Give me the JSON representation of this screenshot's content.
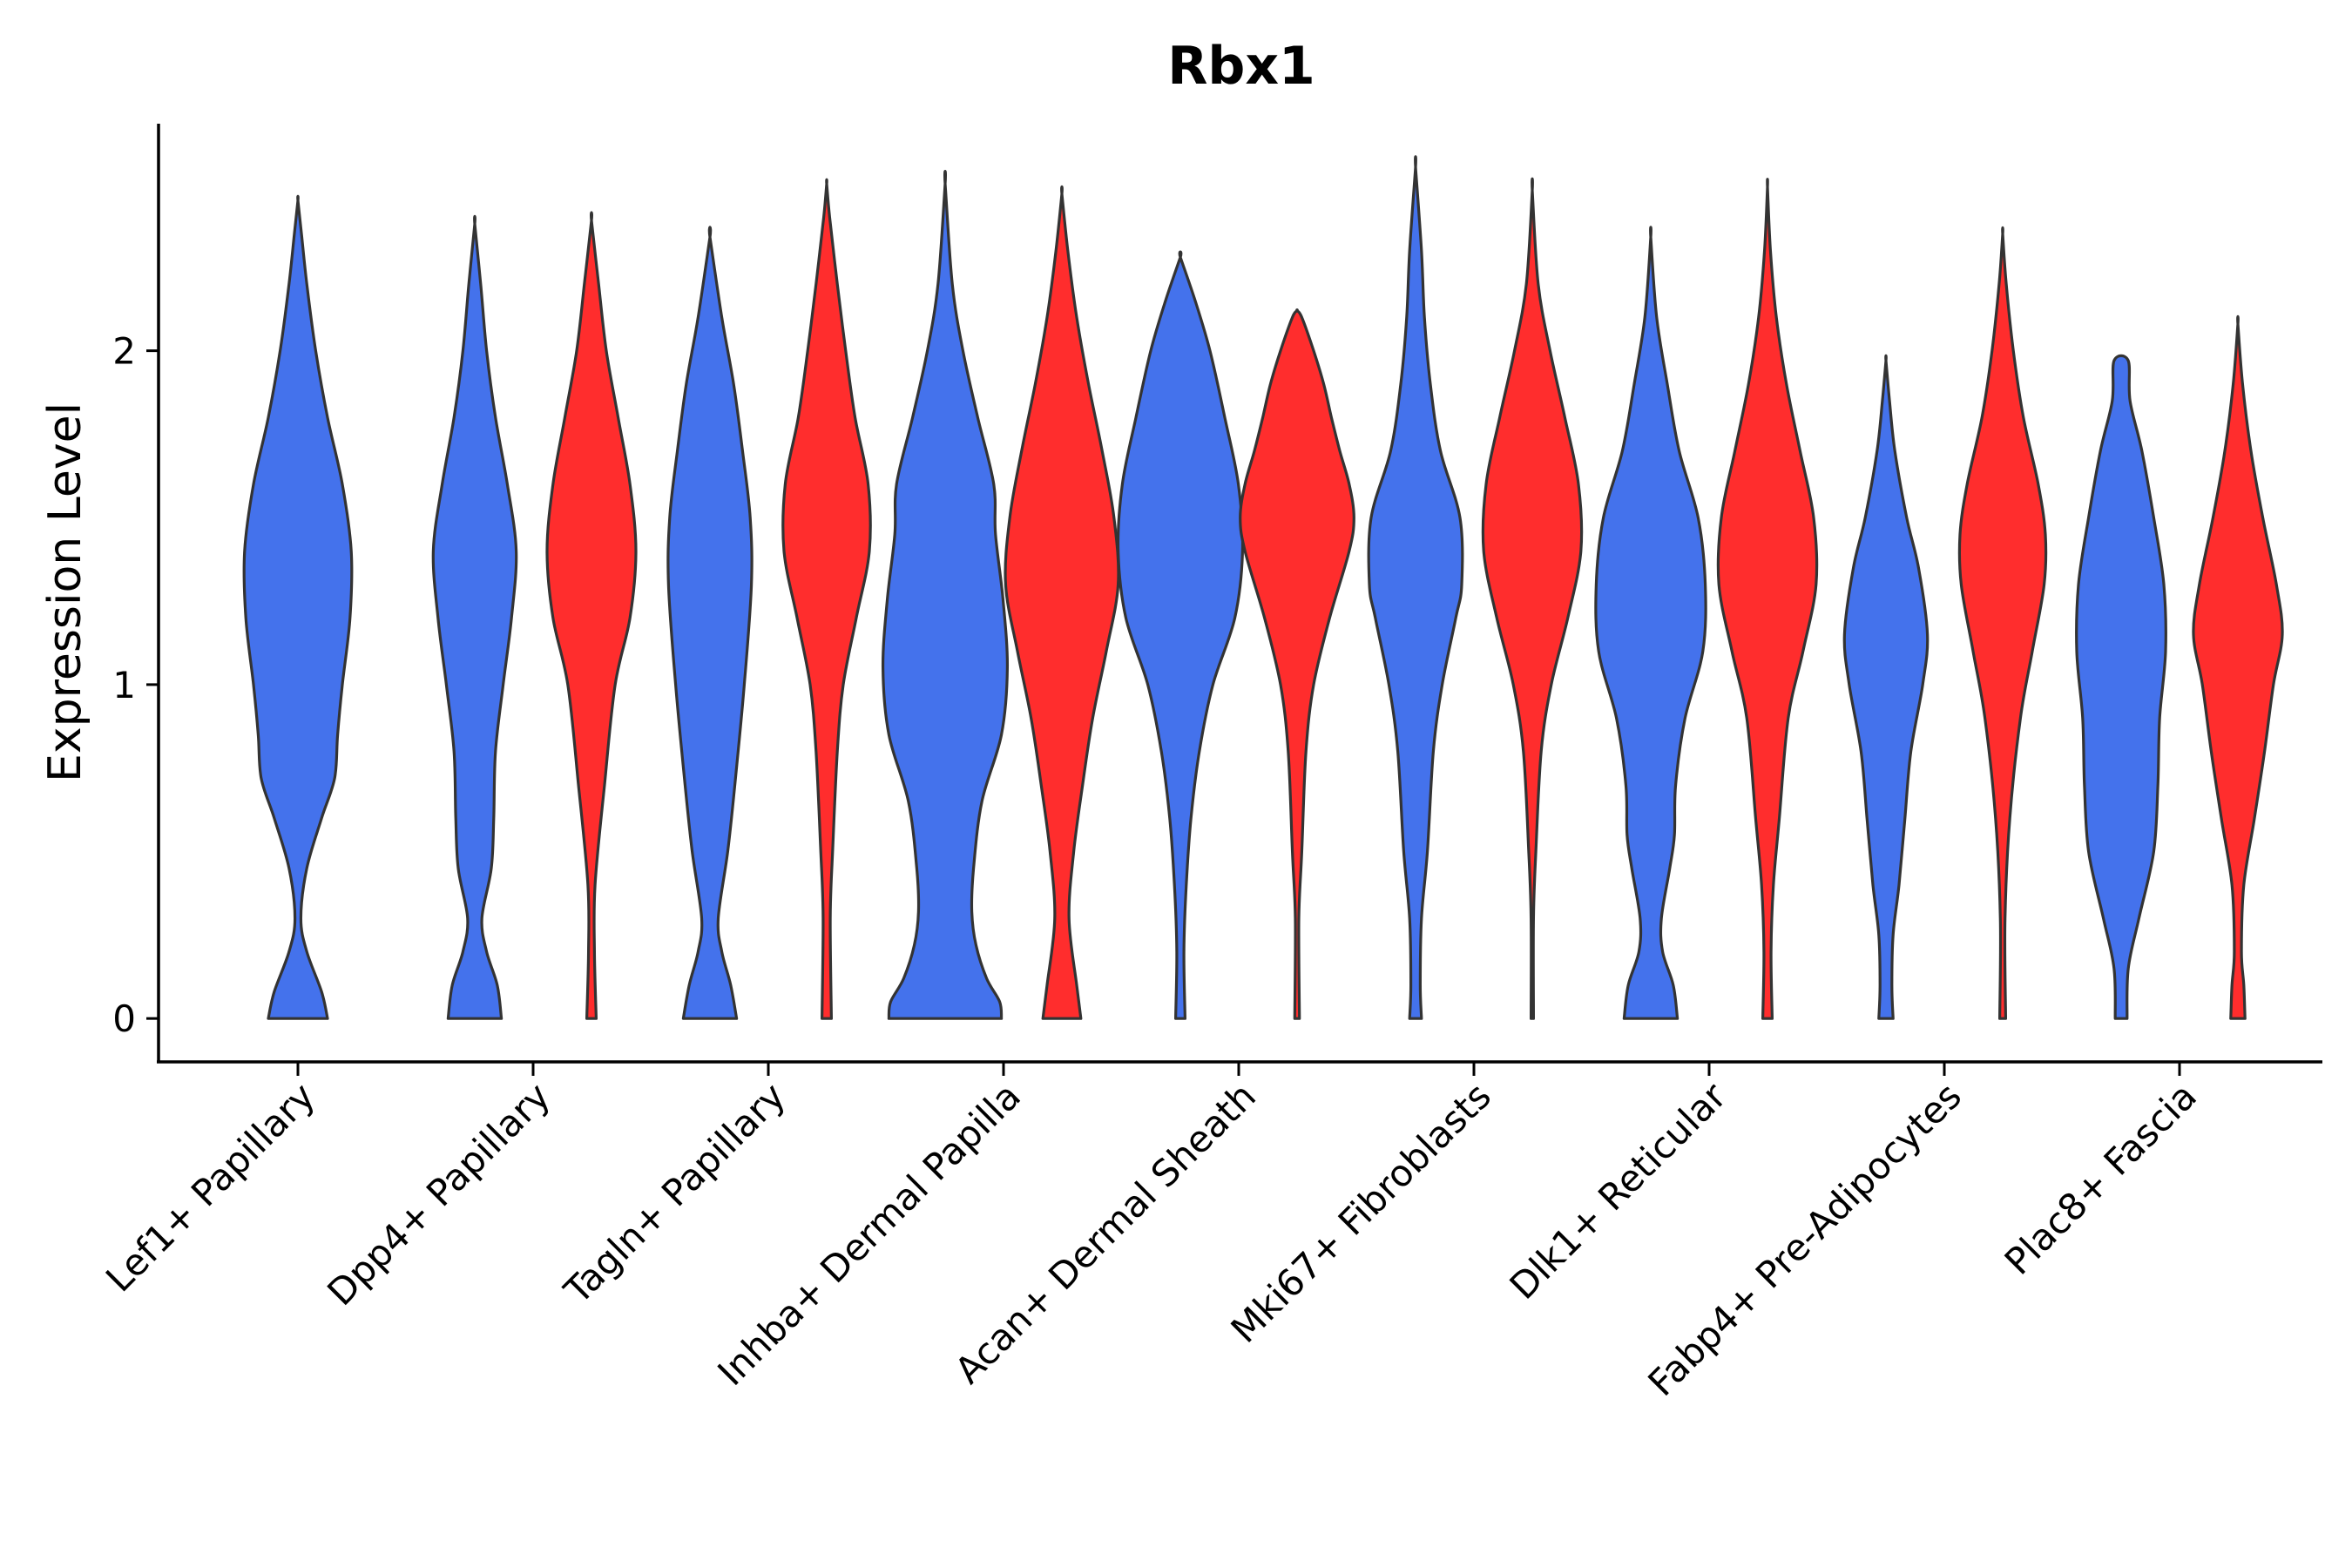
{
  "chart_data": {
    "type": "violin",
    "title": "Rbx1",
    "ylabel": "Expression Level",
    "xlabel": "",
    "ylim": [
      -0.13,
      2.68
    ],
    "yticks": [
      0,
      1,
      2
    ],
    "grid": false,
    "colors": {
      "group_a": "#4472EC",
      "group_b": "#FF2D2D",
      "outline": "#333333"
    },
    "categories": [
      "Lef1+ Papillary",
      "Dpp4+ Papillary",
      "Tagln+ Papillary",
      "Inhba+ Dermal Papilla",
      "Acan+ Dermal Sheath",
      "Mki67+ Fibroblasts",
      "Dlk1+ Reticular",
      "Fabp4+ Pre-Adipocytes",
      "Plac8+ Fascia"
    ],
    "violins": [
      {
        "category": 0,
        "group": "a",
        "ymin": 0,
        "ymax": 2.45,
        "profile": [
          [
            0,
            0.5
          ],
          [
            0.08,
            0.4
          ],
          [
            0.2,
            0.15
          ],
          [
            0.3,
            0.05
          ],
          [
            0.45,
            0.15
          ],
          [
            0.6,
            0.4
          ],
          [
            0.72,
            0.62
          ],
          [
            0.85,
            0.67
          ],
          [
            1.0,
            0.75
          ],
          [
            1.2,
            0.88
          ],
          [
            1.4,
            0.9
          ],
          [
            1.6,
            0.75
          ],
          [
            1.8,
            0.5
          ],
          [
            2.0,
            0.3
          ],
          [
            2.2,
            0.15
          ],
          [
            2.35,
            0.06
          ],
          [
            2.45,
            0
          ]
        ]
      },
      {
        "category": 1,
        "group": "a",
        "ymin": 0,
        "ymax": 2.38,
        "profile": [
          [
            0,
            0.45
          ],
          [
            0.1,
            0.38
          ],
          [
            0.2,
            0.2
          ],
          [
            0.3,
            0.12
          ],
          [
            0.45,
            0.28
          ],
          [
            0.6,
            0.32
          ],
          [
            0.8,
            0.35
          ],
          [
            1.0,
            0.48
          ],
          [
            1.2,
            0.62
          ],
          [
            1.4,
            0.7
          ],
          [
            1.6,
            0.55
          ],
          [
            1.8,
            0.35
          ],
          [
            2.0,
            0.2
          ],
          [
            2.2,
            0.1
          ],
          [
            2.38,
            0
          ]
        ]
      },
      {
        "category": 1,
        "group": "b",
        "ymin": 0,
        "ymax": 2.39,
        "profile": [
          [
            0,
            0.08
          ],
          [
            0.2,
            0.05
          ],
          [
            0.4,
            0.06
          ],
          [
            0.7,
            0.22
          ],
          [
            1.0,
            0.4
          ],
          [
            1.2,
            0.65
          ],
          [
            1.4,
            0.75
          ],
          [
            1.6,
            0.65
          ],
          [
            1.8,
            0.45
          ],
          [
            2.0,
            0.25
          ],
          [
            2.2,
            0.12
          ],
          [
            2.39,
            0
          ]
        ]
      },
      {
        "category": 2,
        "group": "a",
        "ymin": 0,
        "ymax": 2.34,
        "profile": [
          [
            0,
            0.45
          ],
          [
            0.1,
            0.35
          ],
          [
            0.2,
            0.2
          ],
          [
            0.3,
            0.14
          ],
          [
            0.5,
            0.3
          ],
          [
            0.7,
            0.42
          ],
          [
            1.0,
            0.58
          ],
          [
            1.3,
            0.7
          ],
          [
            1.5,
            0.68
          ],
          [
            1.7,
            0.55
          ],
          [
            1.9,
            0.4
          ],
          [
            2.1,
            0.2
          ],
          [
            2.34,
            0
          ]
        ]
      },
      {
        "category": 2,
        "group": "b",
        "ymin": 0,
        "ymax": 2.5,
        "profile": [
          [
            0,
            0.08
          ],
          [
            0.3,
            0.06
          ],
          [
            0.5,
            0.1
          ],
          [
            0.8,
            0.18
          ],
          [
            1.0,
            0.28
          ],
          [
            1.2,
            0.5
          ],
          [
            1.4,
            0.72
          ],
          [
            1.6,
            0.7
          ],
          [
            1.8,
            0.48
          ],
          [
            2.0,
            0.32
          ],
          [
            2.2,
            0.18
          ],
          [
            2.4,
            0.05
          ],
          [
            2.5,
            0
          ]
        ]
      },
      {
        "category": 3,
        "group": "a",
        "ymin": 0,
        "ymax": 2.5,
        "profile": [
          [
            0,
            0.95
          ],
          [
            0.05,
            0.92
          ],
          [
            0.12,
            0.7
          ],
          [
            0.22,
            0.52
          ],
          [
            0.32,
            0.45
          ],
          [
            0.45,
            0.48
          ],
          [
            0.65,
            0.62
          ],
          [
            0.85,
            0.95
          ],
          [
            1.05,
            1.05
          ],
          [
            1.25,
            0.98
          ],
          [
            1.45,
            0.85
          ],
          [
            1.6,
            0.82
          ],
          [
            1.8,
            0.55
          ],
          [
            2.0,
            0.3
          ],
          [
            2.2,
            0.12
          ],
          [
            2.5,
            0
          ]
        ]
      },
      {
        "category": 3,
        "group": "b",
        "ymin": 0,
        "ymax": 2.47,
        "profile": [
          [
            0,
            0.32
          ],
          [
            0.1,
            0.25
          ],
          [
            0.3,
            0.12
          ],
          [
            0.5,
            0.2
          ],
          [
            0.7,
            0.35
          ],
          [
            0.9,
            0.52
          ],
          [
            1.1,
            0.75
          ],
          [
            1.3,
            0.95
          ],
          [
            1.5,
            0.88
          ],
          [
            1.7,
            0.68
          ],
          [
            1.9,
            0.45
          ],
          [
            2.1,
            0.25
          ],
          [
            2.3,
            0.1
          ],
          [
            2.47,
            0
          ]
        ]
      },
      {
        "category": 4,
        "group": "a",
        "ymin": 0,
        "ymax": 2.28,
        "profile": [
          [
            0,
            0.08
          ],
          [
            0.2,
            0.06
          ],
          [
            0.4,
            0.1
          ],
          [
            0.6,
            0.18
          ],
          [
            0.8,
            0.32
          ],
          [
            1.0,
            0.55
          ],
          [
            1.2,
            0.92
          ],
          [
            1.4,
            1.05
          ],
          [
            1.6,
            0.98
          ],
          [
            1.8,
            0.75
          ],
          [
            2.0,
            0.5
          ],
          [
            2.15,
            0.25
          ],
          [
            2.28,
            0
          ]
        ]
      },
      {
        "category": 4,
        "group": "b",
        "ymin": 0,
        "ymax": 2.12,
        "profile": [
          [
            0,
            0.04
          ],
          [
            0.3,
            0.03
          ],
          [
            0.5,
            0.08
          ],
          [
            0.8,
            0.15
          ],
          [
            1.0,
            0.28
          ],
          [
            1.2,
            0.55
          ],
          [
            1.4,
            0.88
          ],
          [
            1.5,
            0.96
          ],
          [
            1.6,
            0.88
          ],
          [
            1.7,
            0.72
          ],
          [
            1.8,
            0.58
          ],
          [
            1.9,
            0.45
          ],
          [
            2.0,
            0.28
          ],
          [
            2.1,
            0.08
          ],
          [
            2.12,
            0
          ]
        ]
      },
      {
        "category": 5,
        "group": "a",
        "ymin": 0,
        "ymax": 2.55,
        "profile": [
          [
            0,
            0.1
          ],
          [
            0.1,
            0.08
          ],
          [
            0.3,
            0.1
          ],
          [
            0.5,
            0.2
          ],
          [
            0.8,
            0.3
          ],
          [
            1.0,
            0.45
          ],
          [
            1.2,
            0.68
          ],
          [
            1.3,
            0.78
          ],
          [
            1.5,
            0.75
          ],
          [
            1.7,
            0.42
          ],
          [
            1.9,
            0.25
          ],
          [
            2.1,
            0.15
          ],
          [
            2.3,
            0.1
          ],
          [
            2.55,
            0
          ]
        ]
      },
      {
        "category": 5,
        "group": "b",
        "ymin": 0,
        "ymax": 2.48,
        "profile": [
          [
            0,
            0.02
          ],
          [
            0.3,
            0.02
          ],
          [
            0.5,
            0.06
          ],
          [
            0.8,
            0.15
          ],
          [
            1.0,
            0.32
          ],
          [
            1.2,
            0.6
          ],
          [
            1.4,
            0.82
          ],
          [
            1.6,
            0.78
          ],
          [
            1.8,
            0.55
          ],
          [
            2.0,
            0.3
          ],
          [
            2.2,
            0.1
          ],
          [
            2.48,
            0
          ]
        ]
      },
      {
        "category": 6,
        "group": "a",
        "ymin": 0,
        "ymax": 2.34,
        "profile": [
          [
            0,
            0.45
          ],
          [
            0.1,
            0.38
          ],
          [
            0.2,
            0.2
          ],
          [
            0.3,
            0.18
          ],
          [
            0.45,
            0.32
          ],
          [
            0.55,
            0.4
          ],
          [
            0.7,
            0.42
          ],
          [
            0.9,
            0.58
          ],
          [
            1.1,
            0.88
          ],
          [
            1.3,
            0.92
          ],
          [
            1.5,
            0.8
          ],
          [
            1.7,
            0.48
          ],
          [
            1.9,
            0.28
          ],
          [
            2.1,
            0.1
          ],
          [
            2.34,
            0
          ]
        ]
      },
      {
        "category": 6,
        "group": "b",
        "ymin": 0,
        "ymax": 2.49,
        "profile": [
          [
            0,
            0.08
          ],
          [
            0.2,
            0.06
          ],
          [
            0.4,
            0.1
          ],
          [
            0.6,
            0.2
          ],
          [
            0.9,
            0.35
          ],
          [
            1.1,
            0.6
          ],
          [
            1.3,
            0.82
          ],
          [
            1.5,
            0.78
          ],
          [
            1.7,
            0.55
          ],
          [
            1.9,
            0.32
          ],
          [
            2.1,
            0.15
          ],
          [
            2.3,
            0.05
          ],
          [
            2.49,
            0
          ]
        ]
      },
      {
        "category": 7,
        "group": "a",
        "ymin": 0,
        "ymax": 1.97,
        "profile": [
          [
            0,
            0.12
          ],
          [
            0.1,
            0.1
          ],
          [
            0.25,
            0.12
          ],
          [
            0.4,
            0.22
          ],
          [
            0.6,
            0.32
          ],
          [
            0.8,
            0.42
          ],
          [
            1.0,
            0.62
          ],
          [
            1.15,
            0.7
          ],
          [
            1.35,
            0.55
          ],
          [
            1.5,
            0.35
          ],
          [
            1.7,
            0.15
          ],
          [
            1.85,
            0.06
          ],
          [
            1.97,
            0
          ]
        ]
      },
      {
        "category": 7,
        "group": "b",
        "ymin": 0,
        "ymax": 2.35,
        "profile": [
          [
            0,
            0.05
          ],
          [
            0.3,
            0.04
          ],
          [
            0.6,
            0.12
          ],
          [
            0.9,
            0.3
          ],
          [
            1.1,
            0.5
          ],
          [
            1.3,
            0.7
          ],
          [
            1.45,
            0.72
          ],
          [
            1.6,
            0.6
          ],
          [
            1.8,
            0.35
          ],
          [
            2.0,
            0.18
          ],
          [
            2.2,
            0.06
          ],
          [
            2.35,
            0
          ]
        ]
      },
      {
        "category": 8,
        "group": "a",
        "ymin": 0,
        "ymax": 1.97,
        "profile": [
          [
            0,
            0.1
          ],
          [
            0.15,
            0.12
          ],
          [
            0.3,
            0.3
          ],
          [
            0.5,
            0.55
          ],
          [
            0.7,
            0.62
          ],
          [
            0.9,
            0.65
          ],
          [
            1.1,
            0.75
          ],
          [
            1.3,
            0.72
          ],
          [
            1.5,
            0.55
          ],
          [
            1.7,
            0.35
          ],
          [
            1.85,
            0.15
          ],
          [
            1.97,
            0.12
          ]
        ]
      },
      {
        "category": 8,
        "group": "b",
        "ymin": 0,
        "ymax": 2.08,
        "profile": [
          [
            0,
            0.12
          ],
          [
            0.1,
            0.1
          ],
          [
            0.2,
            0.06
          ],
          [
            0.4,
            0.1
          ],
          [
            0.6,
            0.28
          ],
          [
            0.8,
            0.45
          ],
          [
            1.0,
            0.6
          ],
          [
            1.15,
            0.75
          ],
          [
            1.3,
            0.65
          ],
          [
            1.5,
            0.42
          ],
          [
            1.7,
            0.22
          ],
          [
            1.9,
            0.08
          ],
          [
            2.08,
            0
          ]
        ]
      }
    ]
  }
}
